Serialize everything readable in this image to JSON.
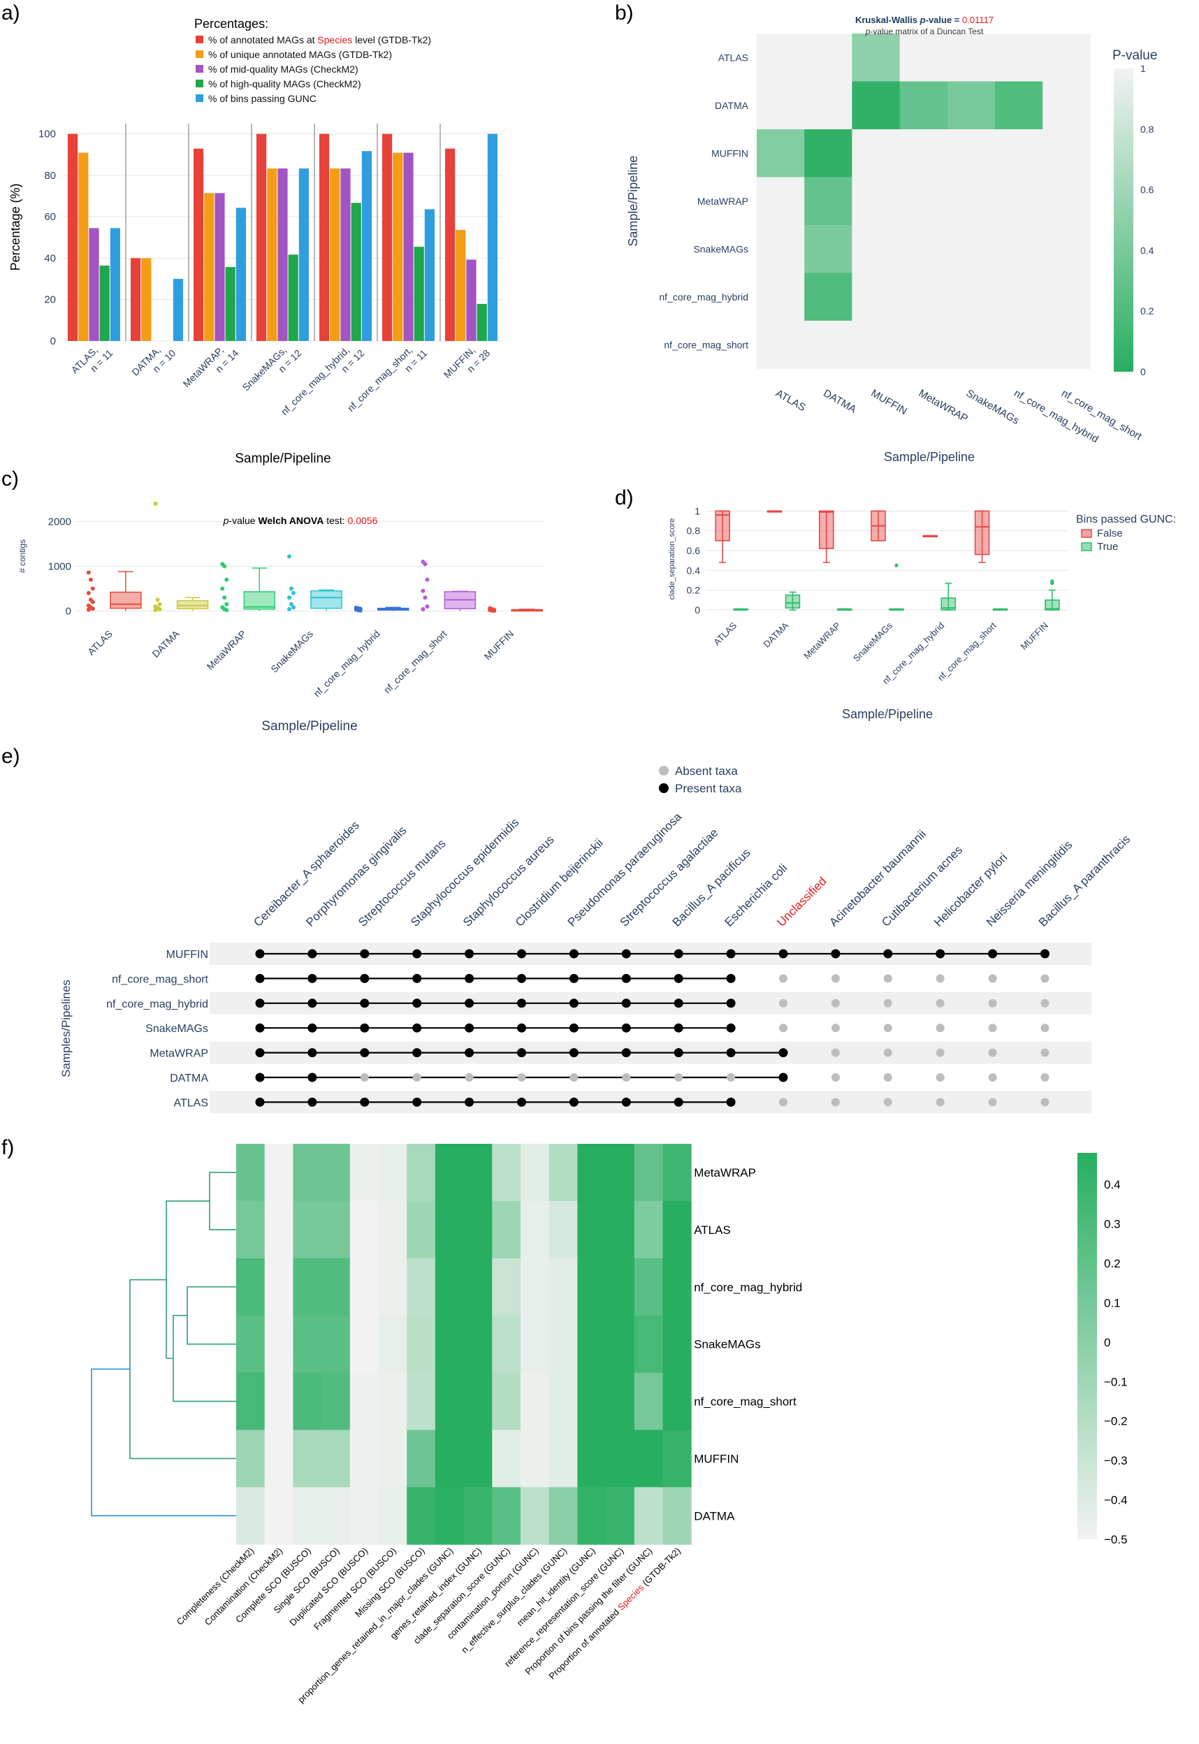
{
  "colors": {
    "red": "#e8413a",
    "orange": "#f59c16",
    "purple": "#a254c3",
    "green": "#1fa74b",
    "blue": "#2f9ee0",
    "axis": "#2a3f5f",
    "grid": "#e5e5e5",
    "heat_low": "#f2f2f2",
    "heat_high": "#27ae60",
    "box_red": "#e74c3c",
    "box_olive": "#c9c93c",
    "box_green": "#2ecc71",
    "box_cyan": "#2cc3d4",
    "box_blue": "#3b72d9",
    "box_purple": "#b55bd4",
    "upset_bg": "#f0f0f0",
    "highlight": "#e31a1c",
    "dendro_green": "#2e9e7a",
    "dendro_blue": "#2a8fd6"
  },
  "panel_labels": {
    "a": "a)",
    "b": "b)",
    "c": "c)",
    "d": "d)",
    "e": "e)",
    "f": "f)"
  },
  "chart_data": [
    {
      "id": "a",
      "type": "bar",
      "legend_title": "Percentages:",
      "legend_items": [
        {
          "pre": "% of annotated MAGs at ",
          "hl": "Species",
          "post": " level (GTDB-Tk2)",
          "color": "red"
        },
        {
          "pre": "% of unique annotated MAGs (GTDB-Tk2)",
          "hl": "",
          "post": "",
          "color": "orange"
        },
        {
          "pre": "% of mid-quality MAGs (CheckM2)",
          "hl": "",
          "post": "",
          "color": "purple"
        },
        {
          "pre": "% of high-quality MAGs (CheckM2)",
          "hl": "",
          "post": "",
          "color": "green"
        },
        {
          "pre": "% of bins passing GUNC",
          "hl": "",
          "post": "",
          "color": "blue"
        }
      ],
      "categories": [
        [
          "ATLAS,",
          "n = 11"
        ],
        [
          "DATMA,",
          "n = 10"
        ],
        [
          "MetaWRAP,",
          "n = 14"
        ],
        [
          "SnakeMAGs,",
          "n = 12"
        ],
        [
          "nf_core_mag_hybrid,",
          "n = 12"
        ],
        [
          "nf_core_mag_short,",
          "n = 11"
        ],
        [
          "MUFFIN,",
          "n = 28"
        ]
      ],
      "series": [
        {
          "color": "red",
          "values": [
            100,
            40,
            92.9,
            100,
            100,
            100,
            92.9
          ]
        },
        {
          "color": "orange",
          "values": [
            90.9,
            40,
            71.4,
            83.3,
            83.3,
            90.9,
            53.6
          ]
        },
        {
          "color": "purple",
          "values": [
            54.5,
            0,
            71.4,
            83.3,
            83.3,
            90.9,
            39.3
          ]
        },
        {
          "color": "green",
          "values": [
            36.4,
            0,
            35.7,
            41.7,
            66.7,
            45.5,
            17.9
          ]
        },
        {
          "color": "blue",
          "values": [
            54.5,
            30,
            64.3,
            83.3,
            91.7,
            63.6,
            100
          ]
        }
      ],
      "ylabel": "Percentage (%)",
      "xlabel": "Sample/Pipeline",
      "ylim": [
        0,
        110
      ],
      "yticks": [
        0,
        20,
        40,
        60,
        80,
        100
      ]
    },
    {
      "id": "b",
      "type": "heatmap",
      "title_pre": "Kruskal-Wallis ",
      "title_it": "p",
      "title_mid": "-value = ",
      "title_val": "0.01117",
      "subtitle_it": "p",
      "subtitle_rest": "-value matrix of a Duncan Test",
      "rows": [
        "ATLAS",
        "DATMA",
        "MUFFIN",
        "MetaWRAP",
        "SnakeMAGs",
        "nf_core_mag_hybrid",
        "nf_core_mag_short"
      ],
      "cols": [
        "ATLAS",
        "DATMA",
        "MUFFIN",
        "MetaWRAP",
        "SnakeMAGs",
        "nf_core_mag_hybrid",
        "nf_core_mag_short"
      ],
      "values": [
        [
          1,
          1,
          0.5,
          1,
          1,
          1,
          1
        ],
        [
          1,
          1,
          0.05,
          0.3,
          0.4,
          0.2,
          1
        ],
        [
          0.45,
          0.05,
          1,
          1,
          1,
          1,
          1
        ],
        [
          1,
          0.3,
          1,
          1,
          1,
          1,
          1
        ],
        [
          1,
          0.42,
          1,
          1,
          1,
          1,
          1
        ],
        [
          1,
          0.2,
          1,
          1,
          1,
          1,
          1
        ],
        [
          1,
          1,
          1,
          1,
          1,
          1,
          1
        ]
      ],
      "colorbar_title": "P-value",
      "colorbar_ticks": [
        "0",
        "0.2",
        "0.4",
        "0.6",
        "0.8",
        "1"
      ],
      "xlabel": "Sample/Pipeline",
      "ylabel": "Sample/Pipeline"
    },
    {
      "id": "c",
      "type": "box",
      "annotation_it": "p",
      "annotation_mid": "-value ",
      "annotation_bold": "Welch ANOVA",
      "annotation_post": " test: ",
      "annotation_val": "0.0056",
      "categories": [
        "ATLAS",
        "DATMA",
        "MetaWRAP",
        "SnakeMAGs",
        "nf_core_mag_hybrid",
        "nf_core_mag_short",
        "MUFFIN"
      ],
      "box_colors": [
        "box_red",
        "box_olive",
        "box_green",
        "box_cyan",
        "box_blue",
        "box_purple",
        "box_red"
      ],
      "boxes": [
        {
          "q1": 60,
          "med": 150,
          "q3": 420,
          "lo": 0,
          "hi": 880,
          "pts": [
            860,
            700,
            500,
            400,
            250,
            200,
            120,
            80,
            50,
            30
          ]
        },
        {
          "q1": 50,
          "med": 120,
          "q3": 230,
          "lo": 0,
          "hi": 300,
          "pts": [
            2400,
            250,
            150,
            100,
            60,
            40,
            20
          ]
        },
        {
          "q1": 40,
          "med": 90,
          "q3": 430,
          "lo": 0,
          "hi": 960,
          "pts": [
            1050,
            1000,
            700,
            500,
            300,
            150,
            80,
            40,
            20
          ]
        },
        {
          "q1": 60,
          "med": 300,
          "q3": 450,
          "lo": 0,
          "hi": 470,
          "pts": [
            1220,
            500,
            400,
            300,
            150,
            80,
            40
          ]
        },
        {
          "q1": 20,
          "med": 40,
          "q3": 60,
          "lo": 0,
          "hi": 80,
          "pts": [
            70,
            60,
            50,
            30,
            20,
            10
          ]
        },
        {
          "q1": 50,
          "med": 250,
          "q3": 430,
          "lo": 0,
          "hi": 440,
          "pts": [
            1100,
            1050,
            700,
            450,
            300,
            100,
            40
          ]
        },
        {
          "q1": 10,
          "med": 20,
          "q3": 30,
          "lo": 0,
          "hi": 40,
          "pts": [
            60,
            40,
            30,
            20,
            10,
            5
          ]
        }
      ],
      "ylabel": "# contigs",
      "xlabel": "Sample/Pipeline",
      "ylim": [
        -150,
        2600
      ],
      "yticks": [
        0,
        1000,
        2000
      ]
    },
    {
      "id": "d",
      "type": "box",
      "categories": [
        "ATLAS",
        "DATMA",
        "MetaWRAP",
        "SnakeMAGs",
        "nf_core_mag_hybrid",
        "nf_core_mag_short",
        "MUFFIN"
      ],
      "false_boxes": [
        {
          "q1": 0.7,
          "med": 0.96,
          "q3": 1,
          "lo": 0.48,
          "hi": 1
        },
        {
          "q1": 1,
          "med": 1,
          "q3": 1,
          "lo": 1,
          "hi": 1
        },
        {
          "q1": 0.62,
          "med": 0.99,
          "q3": 1,
          "lo": 0.48,
          "hi": 1
        },
        {
          "q1": 0.7,
          "med": 0.85,
          "q3": 1,
          "lo": 0.7,
          "hi": 1
        },
        {
          "q1": 0.75,
          "med": 0.75,
          "q3": 0.75,
          "lo": 0.75,
          "hi": 0.75
        },
        {
          "q1": 0.56,
          "med": 0.84,
          "q3": 1,
          "lo": 0.48,
          "hi": 1
        },
        null
      ],
      "true_boxes": [
        {
          "q1": 0,
          "med": 0,
          "q3": 0.01,
          "lo": 0,
          "hi": 0.01,
          "out": []
        },
        {
          "q1": 0.02,
          "med": 0.07,
          "q3": 0.15,
          "lo": 0,
          "hi": 0.18,
          "out": []
        },
        {
          "q1": 0,
          "med": 0,
          "q3": 0.01,
          "lo": 0,
          "hi": 0.01,
          "out": []
        },
        {
          "q1": 0,
          "med": 0,
          "q3": 0.01,
          "lo": 0,
          "hi": 0.01,
          "out": [
            0.45
          ]
        },
        {
          "q1": 0,
          "med": 0.02,
          "q3": 0.12,
          "lo": 0,
          "hi": 0.27,
          "out": []
        },
        {
          "q1": 0,
          "med": 0,
          "q3": 0.01,
          "lo": 0,
          "hi": 0.01,
          "out": []
        },
        {
          "q1": 0,
          "med": 0.01,
          "q3": 0.1,
          "lo": 0,
          "hi": 0.2,
          "out": [
            0.27,
            0.29
          ]
        }
      ],
      "legend_title": "Bins passed GUNC:",
      "legend_items": [
        "False",
        "True"
      ],
      "ylabel": "clade_separation_score",
      "xlabel": "Sample/Pipeline",
      "ylim": [
        -0.05,
        1.08
      ],
      "yticks": [
        0,
        0.2,
        0.4,
        0.6,
        0.8,
        1
      ]
    },
    {
      "id": "e",
      "type": "table",
      "legend": [
        "Absent taxa",
        "Present taxa"
      ],
      "taxa": [
        "Cereibacter_A sphaeroides",
        "Porphyromonas gingivalis",
        "Streptococcus mutans",
        "Staphylococcus epidermidis",
        "Staphylococcus aureus",
        "Clostridium beijerinckii",
        "Pseudomonas paraeruginosa",
        "Streptococcus agalactiae",
        "Bacillus_A pacificus",
        "Escherichia coli",
        "Unclassified",
        "Acinetobacter baumannii",
        "Cutibacterium acnes",
        "Helicobacter pylori",
        "Neisseria meningitidis",
        "Bacillus_A paranthracis"
      ],
      "highlight_taxon": "Unclassified",
      "rows": [
        "MUFFIN",
        "nf_core_mag_short",
        "nf_core_mag_hybrid",
        "SnakeMAGs",
        "MetaWRAP",
        "DATMA",
        "ATLAS"
      ],
      "present": [
        [
          1,
          1,
          1,
          1,
          1,
          1,
          1,
          1,
          1,
          1,
          1,
          1,
          1,
          1,
          1,
          1
        ],
        [
          1,
          1,
          1,
          1,
          1,
          1,
          1,
          1,
          1,
          1,
          0,
          0,
          0,
          0,
          0,
          0
        ],
        [
          1,
          1,
          1,
          1,
          1,
          1,
          1,
          1,
          1,
          1,
          0,
          0,
          0,
          0,
          0,
          0
        ],
        [
          1,
          1,
          1,
          1,
          1,
          1,
          1,
          1,
          1,
          1,
          0,
          0,
          0,
          0,
          0,
          0
        ],
        [
          1,
          1,
          1,
          1,
          1,
          1,
          1,
          1,
          1,
          1,
          1,
          0,
          0,
          0,
          0,
          0
        ],
        [
          1,
          1,
          0,
          0,
          0,
          0,
          0,
          0,
          0,
          0,
          1,
          0,
          0,
          0,
          0,
          0
        ],
        [
          1,
          1,
          1,
          1,
          1,
          1,
          1,
          1,
          1,
          1,
          0,
          0,
          0,
          0,
          0,
          0
        ]
      ],
      "ylabel": "Samples/Pipelines"
    },
    {
      "id": "f",
      "type": "heatmap",
      "rows": [
        "MetaWRAP",
        "ATLAS",
        "nf_core_mag_hybrid",
        "SnakeMAGs",
        "nf_core_mag_short",
        "MUFFIN",
        "DATMA"
      ],
      "cols": [
        {
          "t": "Completeness (CheckM2)"
        },
        {
          "t": "Contamination (CheckM2)"
        },
        {
          "t": "Complete SCO (BUSCO)"
        },
        {
          "t": "Single SCO (BUSCO)"
        },
        {
          "t": "Duplicated SCO (BUSCO)"
        },
        {
          "t": "Fragmented SCO (BUSCO)"
        },
        {
          "t": "Missing SCO (BUSCO)"
        },
        {
          "t": "proportion_genes_retained_in_major_clades (GUNC)"
        },
        {
          "t": "genes_retained_index (GUNC)"
        },
        {
          "t": "clade_separation_score (GUNC)"
        },
        {
          "t": "contamination_portion (GUNC)"
        },
        {
          "t": "n_effective_surplus_clades (GUNC)"
        },
        {
          "t": "mean_hit_identity (GUNC)"
        },
        {
          "t": "reference_representation_score (GUNC)"
        },
        {
          "t": "Proportion of bins passing the filter (GUNC)"
        },
        {
          "t": "Proportion of annotated ",
          "hl": "Species",
          "post": " (GTDB-Tk2)"
        }
      ],
      "values": [
        [
          0.12,
          -0.5,
          0.1,
          0.1,
          -0.48,
          -0.47,
          -0.2,
          0.48,
          0.48,
          -0.3,
          -0.45,
          -0.25,
          0.48,
          0.48,
          0.15,
          0.35
        ],
        [
          0.05,
          -0.5,
          0.05,
          0.05,
          -0.5,
          -0.48,
          -0.15,
          0.48,
          0.48,
          -0.15,
          -0.47,
          -0.4,
          0.48,
          0.48,
          0.0,
          0.48
        ],
        [
          0.28,
          -0.5,
          0.25,
          0.25,
          -0.5,
          -0.48,
          -0.3,
          0.48,
          0.48,
          -0.35,
          -0.47,
          -0.45,
          0.48,
          0.48,
          0.2,
          0.48
        ],
        [
          0.2,
          -0.5,
          0.2,
          0.2,
          -0.5,
          -0.47,
          -0.28,
          0.48,
          0.48,
          -0.3,
          -0.47,
          -0.45,
          0.48,
          0.48,
          0.3,
          0.48
        ],
        [
          0.3,
          -0.5,
          0.28,
          0.25,
          -0.49,
          -0.48,
          -0.3,
          0.48,
          0.48,
          -0.25,
          -0.48,
          -0.45,
          0.48,
          0.48,
          0.05,
          0.48
        ],
        [
          -0.15,
          -0.5,
          -0.2,
          -0.2,
          -0.49,
          -0.48,
          0.1,
          0.48,
          0.48,
          -0.45,
          -0.48,
          -0.45,
          0.48,
          0.48,
          0.48,
          0.4
        ],
        [
          -0.42,
          -0.5,
          -0.47,
          -0.47,
          -0.49,
          -0.47,
          0.4,
          0.45,
          0.38,
          0.2,
          -0.3,
          -0.05,
          0.42,
          0.38,
          -0.3,
          -0.15
        ]
      ],
      "colorbar_ticks": [
        "0.4",
        "0.3",
        "0.2",
        "0.1",
        "0",
        "−0.1",
        "−0.2",
        "−0.3",
        "−0.4",
        "−0.5"
      ],
      "vrange": [
        -0.5,
        0.48
      ]
    }
  ]
}
